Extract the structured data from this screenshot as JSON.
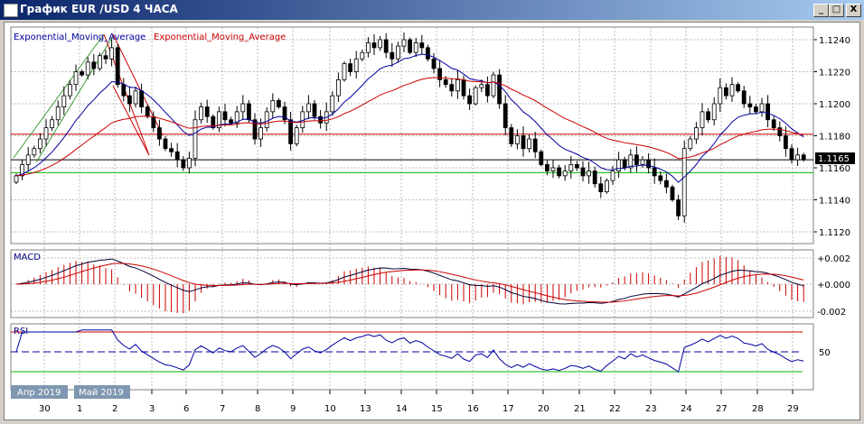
{
  "window": {
    "title": "График EUR /USD  4 ЧАСА",
    "minimize": "_",
    "maximize": "□",
    "close": "X"
  },
  "legend": {
    "ema_blue": "Exponential_Moving_Average",
    "ema_red": "Exponential_Moving_Average"
  },
  "panels": {
    "macd": "MACD",
    "rsi": "RSI"
  },
  "price_axis": [
    "1.1240",
    "1.1220",
    "1.1200",
    "1.1180",
    "1.1160",
    "1.1140",
    "1.1120"
  ],
  "current_price": "1.1165",
  "macd_axis": [
    "+0.002",
    "+0.000",
    "-0.002"
  ],
  "rsi_axis": [
    "50"
  ],
  "months": [
    "Апр 2019",
    "Май 2019"
  ],
  "dates": [
    "30",
    "1",
    "2",
    "3",
    "6",
    "7",
    "8",
    "9",
    "10",
    "13",
    "14",
    "15",
    "16",
    "17",
    "20",
    "21",
    "22",
    "23",
    "24",
    "27",
    "28",
    "29"
  ],
  "colors": {
    "ema_fast": "#0000a0",
    "ema_slow": "#cc0000",
    "support": "#00bb00",
    "resistance": "#cc0000"
  },
  "chart_data": {
    "type": "candlestick",
    "title": "EUR/USD 4H",
    "ylim": [
      1.111,
      1.125
    ],
    "levels": {
      "resistance": 1.1181,
      "current": 1.1165,
      "support": 1.1157
    },
    "rsi_levels": [
      70,
      50,
      30
    ],
    "closes": [
      1.1155,
      1.1162,
      1.1168,
      1.1172,
      1.1178,
      1.1185,
      1.119,
      1.1198,
      1.1205,
      1.1212,
      1.122,
      1.1218,
      1.1226,
      1.1222,
      1.123,
      1.1228,
      1.1235,
      1.1212,
      1.1205,
      1.12,
      1.1208,
      1.1198,
      1.1192,
      1.1185,
      1.1178,
      1.1172,
      1.117,
      1.1165,
      1.116,
      1.1166,
      1.119,
      1.1198,
      1.1192,
      1.1185,
      1.1195,
      1.119,
      1.1188,
      1.1195,
      1.12,
      1.119,
      1.1178,
      1.1185,
      1.1195,
      1.1202,
      1.1198,
      1.119,
      1.1175,
      1.1185,
      1.1195,
      1.12,
      1.1192,
      1.1188,
      1.1195,
      1.1205,
      1.1215,
      1.1225,
      1.122,
      1.1228,
      1.1232,
      1.1238,
      1.1235,
      1.124,
      1.1232,
      1.1228,
      1.1236,
      1.124,
      1.1232,
      1.1238,
      1.1235,
      1.1228,
      1.1222,
      1.1215,
      1.1212,
      1.1208,
      1.1215,
      1.1205,
      1.12,
      1.121,
      1.1212,
      1.1205,
      1.1218,
      1.12,
      1.1185,
      1.1175,
      1.118,
      1.1172,
      1.1178,
      1.117,
      1.1162,
      1.1158,
      1.116,
      1.1155,
      1.1158,
      1.1162,
      1.116,
      1.1155,
      1.1158,
      1.115,
      1.1145,
      1.1152,
      1.1158,
      1.1165,
      1.116,
      1.1168,
      1.1162,
      1.1165,
      1.116,
      1.1155,
      1.1152,
      1.1148,
      1.114,
      1.113,
      1.1172,
      1.1178,
      1.1185,
      1.1195,
      1.119,
      1.12,
      1.121,
      1.1205,
      1.1212,
      1.1208,
      1.12,
      1.1198,
      1.1195,
      1.12,
      1.119,
      1.1185,
      1.118,
      1.1172,
      1.1165,
      1.1168,
      1.1165
    ]
  }
}
